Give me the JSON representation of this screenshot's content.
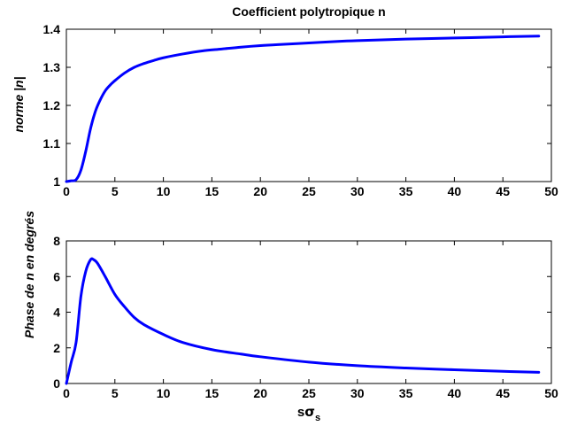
{
  "chart_data": [
    {
      "type": "line",
      "title": "Coefficient polytropique n",
      "ylabel": "norme |n|",
      "xlabel": "",
      "xlim": [
        0,
        50
      ],
      "ylim": [
        1.0,
        1.4
      ],
      "xticks": [
        "0",
        "5",
        "10",
        "15",
        "20",
        "25",
        "30",
        "35",
        "40",
        "45",
        "50"
      ],
      "yticks": [
        "1",
        "1.1",
        "1.2",
        "1.3",
        "1.4"
      ],
      "grid": false,
      "series": [
        {
          "color": "#0000ff",
          "x": [
            0,
            0.5,
            1,
            1.5,
            2,
            2.5,
            3,
            3.5,
            4,
            4.5,
            5,
            6,
            7,
            8,
            9,
            10,
            12,
            14,
            16,
            18,
            20,
            22,
            25,
            28,
            30,
            35,
            40,
            45,
            48.7
          ],
          "y": [
            1.0,
            1.002,
            1.005,
            1.03,
            1.08,
            1.14,
            1.185,
            1.215,
            1.238,
            1.253,
            1.265,
            1.285,
            1.3,
            1.31,
            1.318,
            1.325,
            1.335,
            1.343,
            1.348,
            1.353,
            1.357,
            1.36,
            1.364,
            1.368,
            1.37,
            1.374,
            1.377,
            1.38,
            1.382
          ]
        }
      ]
    },
    {
      "type": "line",
      "title": "",
      "ylabel": "Phase de n en degrés",
      "xlabel": "sσs",
      "xlim": [
        0,
        50
      ],
      "ylim": [
        0,
        8
      ],
      "xticks": [
        "0",
        "5",
        "10",
        "15",
        "20",
        "25",
        "30",
        "35",
        "40",
        "45",
        "50"
      ],
      "yticks": [
        "0",
        "2",
        "4",
        "6",
        "8"
      ],
      "grid": false,
      "series": [
        {
          "color": "#0000ff",
          "x": [
            0,
            0.5,
            1,
            1.5,
            2,
            2.5,
            2.8,
            3.2,
            4,
            5,
            6,
            7,
            8,
            10,
            12,
            15,
            18,
            20,
            25,
            30,
            35,
            40,
            45,
            48.7
          ],
          "y": [
            0,
            1.2,
            2.3,
            4.9,
            6.3,
            6.95,
            6.95,
            6.75,
            6.0,
            5.0,
            4.3,
            3.7,
            3.3,
            2.75,
            2.3,
            1.9,
            1.65,
            1.5,
            1.2,
            1.0,
            0.87,
            0.77,
            0.68,
            0.63
          ]
        }
      ]
    }
  ]
}
